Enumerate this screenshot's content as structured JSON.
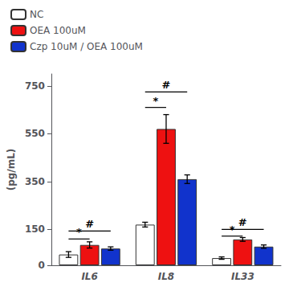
{
  "chart_data": {
    "type": "bar",
    "categories": [
      "IL6",
      "IL8",
      "IL33"
    ],
    "series": [
      {
        "name": "NC",
        "color": "#ffffff",
        "values": [
          45,
          170,
          30
        ],
        "errors": [
          12,
          10,
          5
        ]
      },
      {
        "name": "OEA 100uM",
        "color": "#ee1111",
        "values": [
          85,
          570,
          108
        ],
        "errors": [
          13,
          60,
          8
        ]
      },
      {
        "name": "Czp 10uM / OEA 100uM",
        "color": "#1133cc",
        "values": [
          70,
          360,
          78
        ],
        "errors": [
          7,
          18,
          7
        ]
      }
    ],
    "ylabel": "(pg/mL)",
    "ylim": [
      0,
      800
    ],
    "yticks": [
      0,
      150,
      350,
      550,
      750
    ],
    "grid": false,
    "legend": "upper left",
    "annotations": [
      {
        "category": "IL6",
        "from": "NC",
        "to": "OEA 100uM",
        "y": 110,
        "text": "*"
      },
      {
        "category": "IL6",
        "from": "NC",
        "to": "Czp 10uM / OEA 100uM",
        "y": 143,
        "text": "#"
      },
      {
        "category": "IL8",
        "from": "NC",
        "to": "OEA 100uM",
        "y": 660,
        "text": "*"
      },
      {
        "category": "IL8",
        "from": "NC",
        "to": "Czp 10uM / OEA 100uM",
        "y": 725,
        "text": "#"
      },
      {
        "category": "IL33",
        "from": "NC",
        "to": "OEA 100uM",
        "y": 122,
        "text": "*"
      },
      {
        "category": "IL33",
        "from": "NC",
        "to": "Czp 10uM / OEA 100uM",
        "y": 150,
        "text": "#"
      }
    ]
  }
}
